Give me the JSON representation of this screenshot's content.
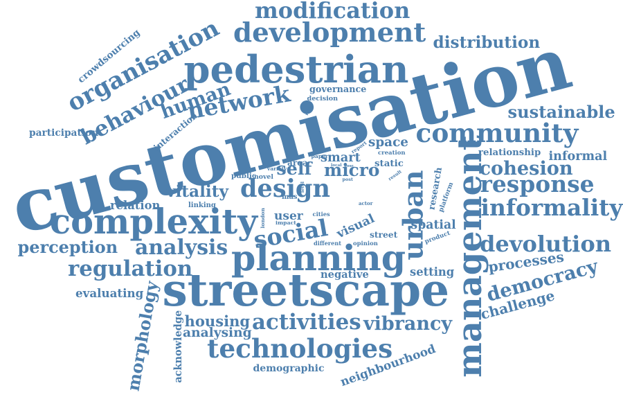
{
  "colors": {
    "word": "#4d7fad",
    "background": "#ffffff"
  },
  "words": [
    "customisation",
    "design",
    "streetscape",
    "pedestrian",
    "development",
    "modification",
    "distribution",
    "organisation",
    "behaviour",
    "crowdsourcing",
    "human",
    "network",
    "governance",
    "decision",
    "participation",
    "interaction",
    "sustainable",
    "community",
    "relationship",
    "informal",
    "cohesion",
    "response",
    "informality",
    "devolution",
    "processes",
    "democracy",
    "challenge",
    "management",
    "urban",
    "complexity",
    "perception",
    "analysis",
    "regulation",
    "evaluating",
    "relation",
    "vitality",
    "linking",
    "public",
    "novel",
    "variety",
    "area",
    "self",
    "smart",
    "micro",
    "static",
    "space",
    "creation",
    "report",
    "paper",
    "local",
    "pose",
    "post",
    "result",
    "level",
    "role",
    "mas",
    "london",
    "impact",
    "cities",
    "user",
    "social",
    "visual",
    "street",
    "different",
    "opinion",
    "actor",
    "spatial",
    "product",
    "research",
    "platform",
    "planning",
    "negative",
    "setting",
    "housing",
    "analysing",
    "acknowledge",
    "morphology",
    "activities",
    "vibrancy",
    "technologies",
    "demographic",
    "neighbourhood"
  ]
}
